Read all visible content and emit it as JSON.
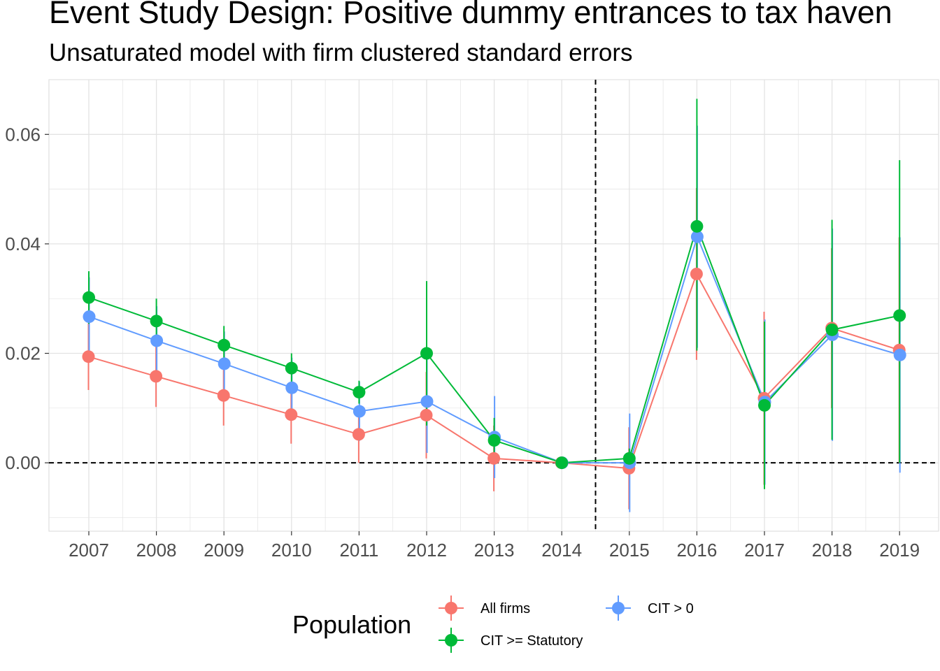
{
  "title": "Event Study Design: Positive dummy entrances to tax haven",
  "subtitle": "Unsaturated model with firm clustered standard errors",
  "chart_data": {
    "type": "line",
    "title": "Event Study Design: Positive dummy entrances to tax haven",
    "subtitle": "Unsaturated model with firm clustered standard errors",
    "xlabel": "",
    "ylabel": "",
    "categories": [
      "2007",
      "2008",
      "2009",
      "2010",
      "2011",
      "2012",
      "2013",
      "2014",
      "2015",
      "2016",
      "2017",
      "2018",
      "2019"
    ],
    "y_ticks": [
      0.0,
      0.02,
      0.04,
      0.06
    ],
    "y_tick_labels": [
      "0.00",
      "0.02",
      "0.04",
      "0.06"
    ],
    "ylim": [
      -0.0125,
      0.07
    ],
    "reference_lines": {
      "horizontal_y": 0,
      "vertical_between": [
        "2014",
        "2015"
      ]
    },
    "grid": true,
    "legend": {
      "title": "Population",
      "position": "bottom"
    },
    "series": [
      {
        "name": "All firms",
        "color": "#F8766D",
        "values": [
          0.0194,
          0.0158,
          0.0123,
          0.0088,
          0.0052,
          0.0087,
          0.0008,
          0.0,
          -0.001,
          0.0345,
          0.0118,
          0.0246,
          0.0206
        ],
        "lower": [
          0.0133,
          0.0102,
          0.0068,
          0.0035,
          0.0,
          0.0008,
          -0.0052,
          0.0,
          -0.0085,
          0.0188,
          -0.004,
          0.01,
          0.0
        ],
        "upper": [
          0.0255,
          0.0214,
          0.0178,
          0.0141,
          0.0104,
          0.0166,
          0.0068,
          0.0,
          0.0065,
          0.0502,
          0.0276,
          0.0392,
          0.0412
        ]
      },
      {
        "name": "CIT > 0",
        "color": "#619CFF",
        "values": [
          0.0267,
          0.0223,
          0.0181,
          0.0137,
          0.0094,
          0.0112,
          0.0047,
          0.0,
          0.0,
          0.0413,
          0.0111,
          0.0234,
          0.0197
        ],
        "lower": [
          0.0195,
          0.016,
          0.0122,
          0.0082,
          0.004,
          0.0018,
          -0.0028,
          0.0,
          -0.009,
          0.021,
          -0.004,
          0.004,
          -0.0018
        ],
        "upper": [
          0.0339,
          0.0286,
          0.024,
          0.0192,
          0.0148,
          0.0206,
          0.0122,
          0.0,
          0.009,
          0.0616,
          0.0262,
          0.0428,
          0.0412
        ]
      },
      {
        "name": "CIT >= Statutory",
        "color": "#00BA38",
        "values": [
          0.0302,
          0.0259,
          0.0215,
          0.0173,
          0.0129,
          0.02,
          0.0041,
          0.0,
          0.0008,
          0.0432,
          0.0105,
          0.0243,
          0.0269
        ],
        "lower": [
          0.0254,
          0.0218,
          0.018,
          0.0146,
          0.0108,
          0.0068,
          0.0,
          0.0,
          -0.001,
          0.0205,
          -0.0048,
          0.0042,
          0.0
        ],
        "upper": [
          0.035,
          0.03,
          0.025,
          0.02,
          0.015,
          0.0332,
          0.0082,
          0.0,
          0.0026,
          0.0665,
          0.0258,
          0.0444,
          0.0553
        ]
      }
    ]
  }
}
